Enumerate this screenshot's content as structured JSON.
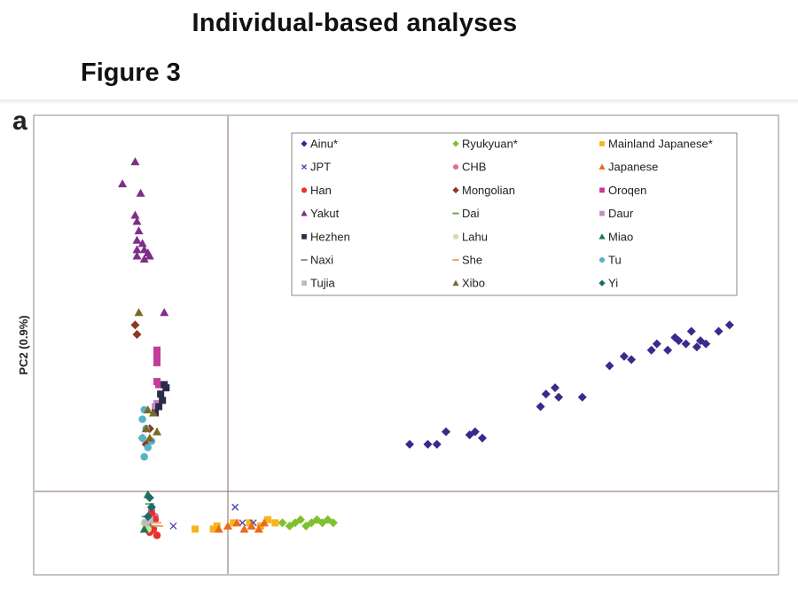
{
  "header": {
    "title": "Individual-based analyses",
    "figure_label": "Figure 3",
    "panel_letter": "a"
  },
  "chart_data": {
    "type": "scatter",
    "ylabel": "PC2 (0.9%)",
    "xlabel": "",
    "grid": false,
    "legend_position": "top-right",
    "reference_lines": {
      "x": 0,
      "y": 0
    },
    "series": [
      {
        "name": "Ainu*",
        "marker": "diamond",
        "color": "#3b2a8c",
        "points": [
          [
            1.0,
            0.15
          ],
          [
            1.1,
            0.15
          ],
          [
            1.15,
            0.15
          ],
          [
            1.2,
            0.19
          ],
          [
            1.33,
            0.18
          ],
          [
            1.36,
            0.19
          ],
          [
            1.4,
            0.17
          ],
          [
            1.72,
            0.27
          ],
          [
            1.75,
            0.31
          ],
          [
            1.8,
            0.33
          ],
          [
            1.82,
            0.3
          ],
          [
            1.95,
            0.3
          ],
          [
            2.1,
            0.4
          ],
          [
            2.18,
            0.43
          ],
          [
            2.22,
            0.42
          ],
          [
            2.33,
            0.45
          ],
          [
            2.36,
            0.47
          ],
          [
            2.42,
            0.45
          ],
          [
            2.46,
            0.49
          ],
          [
            2.48,
            0.48
          ],
          [
            2.52,
            0.47
          ],
          [
            2.55,
            0.51
          ],
          [
            2.58,
            0.46
          ],
          [
            2.6,
            0.48
          ],
          [
            2.63,
            0.47
          ],
          [
            2.7,
            0.51
          ],
          [
            2.76,
            0.53
          ]
        ]
      },
      {
        "name": "Ryukyuan*",
        "marker": "diamond",
        "color": "#7ec12f",
        "points": [
          [
            0.3,
            -0.1
          ],
          [
            0.34,
            -0.11
          ],
          [
            0.37,
            -0.1
          ],
          [
            0.4,
            -0.09
          ],
          [
            0.43,
            -0.11
          ],
          [
            0.46,
            -0.1
          ],
          [
            0.49,
            -0.09
          ],
          [
            0.52,
            -0.1
          ],
          [
            0.55,
            -0.09
          ],
          [
            0.58,
            -0.1
          ]
        ]
      },
      {
        "name": "Mainland Japanese*",
        "marker": "square",
        "color": "#f6b51d",
        "points": [
          [
            -0.18,
            -0.12
          ],
          [
            -0.08,
            -0.12
          ],
          [
            -0.06,
            -0.11
          ],
          [
            0.03,
            -0.1
          ],
          [
            0.12,
            -0.1
          ],
          [
            0.18,
            -0.11
          ],
          [
            0.22,
            -0.09
          ],
          [
            0.26,
            -0.1
          ]
        ]
      },
      {
        "name": "JPT",
        "marker": "x",
        "color": "#4a4aa8",
        "points": [
          [
            -0.3,
            -0.11
          ],
          [
            0.04,
            -0.05
          ],
          [
            0.08,
            -0.1
          ],
          [
            0.14,
            -0.1
          ]
        ]
      },
      {
        "name": "CHB",
        "marker": "circle",
        "color": "#e36ba5",
        "points": [
          [
            -0.42,
            -0.06
          ],
          [
            -0.4,
            -0.08
          ]
        ]
      },
      {
        "name": "Japanese",
        "marker": "triangle",
        "color": "#ed6a1c",
        "points": [
          [
            -0.05,
            -0.12
          ],
          [
            0.0,
            -0.11
          ],
          [
            0.05,
            -0.1
          ],
          [
            0.09,
            -0.12
          ],
          [
            0.13,
            -0.11
          ],
          [
            0.17,
            -0.12
          ],
          [
            0.2,
            -0.1
          ]
        ]
      },
      {
        "name": "Han",
        "marker": "circle",
        "color": "#e5322d",
        "points": [
          [
            -0.43,
            -0.13
          ],
          [
            -0.41,
            -0.12
          ],
          [
            -0.39,
            -0.14
          ],
          [
            -0.44,
            -0.11
          ],
          [
            -0.4,
            -0.09
          ],
          [
            -0.42,
            -0.07
          ]
        ]
      },
      {
        "name": "Mongolian",
        "marker": "diamond",
        "color": "#8c3a1e",
        "points": [
          [
            -0.51,
            0.53
          ],
          [
            -0.5,
            0.5
          ],
          [
            -0.47,
            0.17
          ],
          [
            -0.45,
            0.15
          ],
          [
            -0.43,
            0.2
          ]
        ]
      },
      {
        "name": "Oroqen",
        "marker": "square",
        "color": "#c33b9b",
        "points": [
          [
            -0.39,
            0.45
          ],
          [
            -0.39,
            0.43
          ],
          [
            -0.39,
            0.41
          ],
          [
            -0.39,
            0.35
          ],
          [
            -0.38,
            0.34
          ]
        ]
      },
      {
        "name": "Yakut",
        "marker": "triangle",
        "color": "#7e2e88",
        "points": [
          [
            -0.58,
            0.98
          ],
          [
            -0.51,
            1.05
          ],
          [
            -0.48,
            0.95
          ],
          [
            -0.51,
            0.88
          ],
          [
            -0.5,
            0.86
          ],
          [
            -0.49,
            0.83
          ],
          [
            -0.5,
            0.8
          ],
          [
            -0.47,
            0.79
          ],
          [
            -0.5,
            0.77
          ],
          [
            -0.46,
            0.77
          ],
          [
            -0.44,
            0.76
          ],
          [
            -0.5,
            0.75
          ],
          [
            -0.46,
            0.74
          ],
          [
            -0.43,
            0.75
          ],
          [
            -0.35,
            0.57
          ]
        ]
      },
      {
        "name": "Dai",
        "marker": "dash",
        "color": "#6aa84f",
        "points": [
          [
            -0.43,
            -0.04
          ],
          [
            -0.4,
            -0.11
          ]
        ]
      },
      {
        "name": "Daur",
        "marker": "square",
        "color": "#c58cc7",
        "points": [
          [
            -0.39,
            0.28
          ],
          [
            -0.4,
            0.27
          ]
        ]
      },
      {
        "name": "Hezhen",
        "marker": "square",
        "color": "#2b2b4a",
        "points": [
          [
            -0.35,
            0.34
          ],
          [
            -0.34,
            0.33
          ],
          [
            -0.37,
            0.31
          ],
          [
            -0.36,
            0.29
          ],
          [
            -0.38,
            0.27
          ],
          [
            -0.4,
            0.25
          ]
        ]
      },
      {
        "name": "Lahu",
        "marker": "circle",
        "color": "#c9e3a6",
        "points": [
          [
            -0.46,
            -0.1
          ],
          [
            -0.44,
            -0.12
          ]
        ]
      },
      {
        "name": "Miao",
        "marker": "triangle",
        "color": "#1f7a4a",
        "points": [
          [
            -0.46,
            -0.12
          ],
          [
            -0.44,
            -0.01
          ]
        ]
      },
      {
        "name": "Naxi",
        "marker": "dash",
        "color": "#6fa0a8",
        "points": [
          [
            -0.45,
            -0.08
          ],
          [
            -0.43,
            -0.1
          ]
        ]
      },
      {
        "name": "She",
        "marker": "dash",
        "color": "#f3a373",
        "points": [
          [
            -0.38,
            -0.11
          ],
          [
            -0.39,
            -0.1
          ]
        ]
      },
      {
        "name": "Tu",
        "marker": "circle",
        "color": "#58b3c8",
        "points": [
          [
            -0.46,
            0.26
          ],
          [
            -0.47,
            0.23
          ],
          [
            -0.45,
            0.2
          ],
          [
            -0.47,
            0.17
          ],
          [
            -0.44,
            0.14
          ],
          [
            -0.42,
            0.16
          ],
          [
            -0.46,
            0.11
          ]
        ]
      },
      {
        "name": "Tujia",
        "marker": "square",
        "color": "#bbbbbb",
        "points": [
          [
            -0.45,
            -0.1
          ],
          [
            -0.43,
            -0.09
          ]
        ]
      },
      {
        "name": "Xibo",
        "marker": "triangle",
        "color": "#7a6a29",
        "points": [
          [
            -0.49,
            0.57
          ],
          [
            -0.44,
            0.26
          ],
          [
            -0.41,
            0.25
          ],
          [
            -0.45,
            0.2
          ],
          [
            -0.39,
            0.19
          ],
          [
            -0.43,
            0.17
          ]
        ]
      },
      {
        "name": "Yi",
        "marker": "diamond",
        "color": "#1c6b6b",
        "points": [
          [
            -0.43,
            -0.02
          ],
          [
            -0.44,
            -0.08
          ],
          [
            -0.42,
            -0.05
          ]
        ]
      }
    ]
  }
}
